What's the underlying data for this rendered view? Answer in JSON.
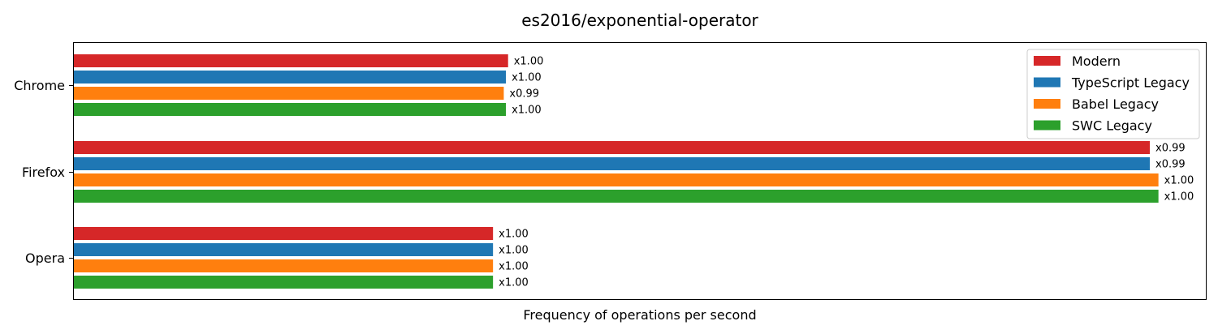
{
  "chart_data": {
    "type": "bar",
    "orientation": "horizontal",
    "title": "es2016/exponential-operator",
    "xlabel": "Frequency of operations per second",
    "ylabel": "",
    "categories": [
      "Chrome",
      "Firefox",
      "Opera"
    ],
    "series": [
      {
        "name": "Modern",
        "color": "#d62728",
        "values": [
          1.01,
          2.5,
          0.975
        ],
        "labels": [
          "x1.00",
          "x0.99",
          "x1.00"
        ]
      },
      {
        "name": "TypeScript Legacy",
        "color": "#1f77b4",
        "values": [
          1.005,
          2.5,
          0.975
        ],
        "labels": [
          "x1.00",
          "x0.99",
          "x1.00"
        ]
      },
      {
        "name": "Babel Legacy",
        "color": "#ff7f0e",
        "values": [
          1.0,
          2.52,
          0.975
        ],
        "labels": [
          "x0.99",
          "x1.00",
          "x1.00"
        ]
      },
      {
        "name": "SWC Legacy",
        "color": "#2ca02c",
        "values": [
          1.005,
          2.52,
          0.975
        ],
        "labels": [
          "x1.00",
          "x1.00",
          "x1.00"
        ]
      }
    ],
    "xlim": [
      0,
      2.63
    ],
    "x_ticks_shown": false,
    "grid": false,
    "legend": "top-right"
  }
}
